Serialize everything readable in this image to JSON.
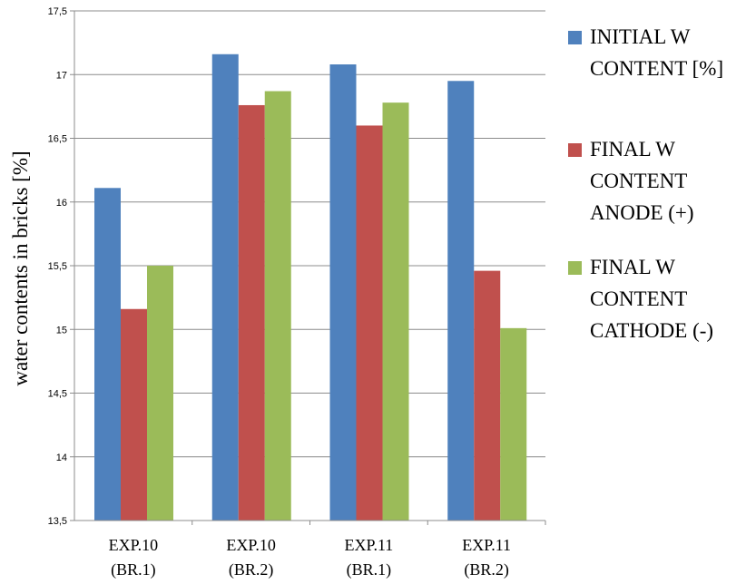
{
  "chart_data": {
    "type": "bar",
    "title": "",
    "xlabel": "",
    "ylabel": "water contents in bricks [%]",
    "ylim": [
      13.5,
      17.5
    ],
    "yticks": [
      "13,5",
      "14",
      "14,5",
      "15",
      "15,5",
      "16",
      "16,5",
      "17",
      "17,5"
    ],
    "grid": true,
    "legend_position": "right",
    "categories": [
      [
        "EXP.10",
        "(BR.1)"
      ],
      [
        "EXP.10",
        "(BR.2)"
      ],
      [
        "EXP.11",
        "(BR.1)"
      ],
      [
        "EXP.11",
        "(BR.2)"
      ]
    ],
    "series": [
      {
        "name": [
          "INITIAL W",
          "CONTENT [%]"
        ],
        "color": "#4f81bd",
        "values": [
          16.11,
          17.16,
          17.08,
          16.95
        ]
      },
      {
        "name": [
          "FINAL W",
          "CONTENT",
          "ANODE (+)"
        ],
        "color": "#c0504d",
        "values": [
          15.16,
          16.76,
          16.6,
          15.46
        ]
      },
      {
        "name": [
          "FINAL W",
          "CONTENT",
          "CATHODE (-)"
        ],
        "color": "#9bbb59",
        "values": [
          15.5,
          16.87,
          16.78,
          15.01
        ]
      }
    ]
  }
}
